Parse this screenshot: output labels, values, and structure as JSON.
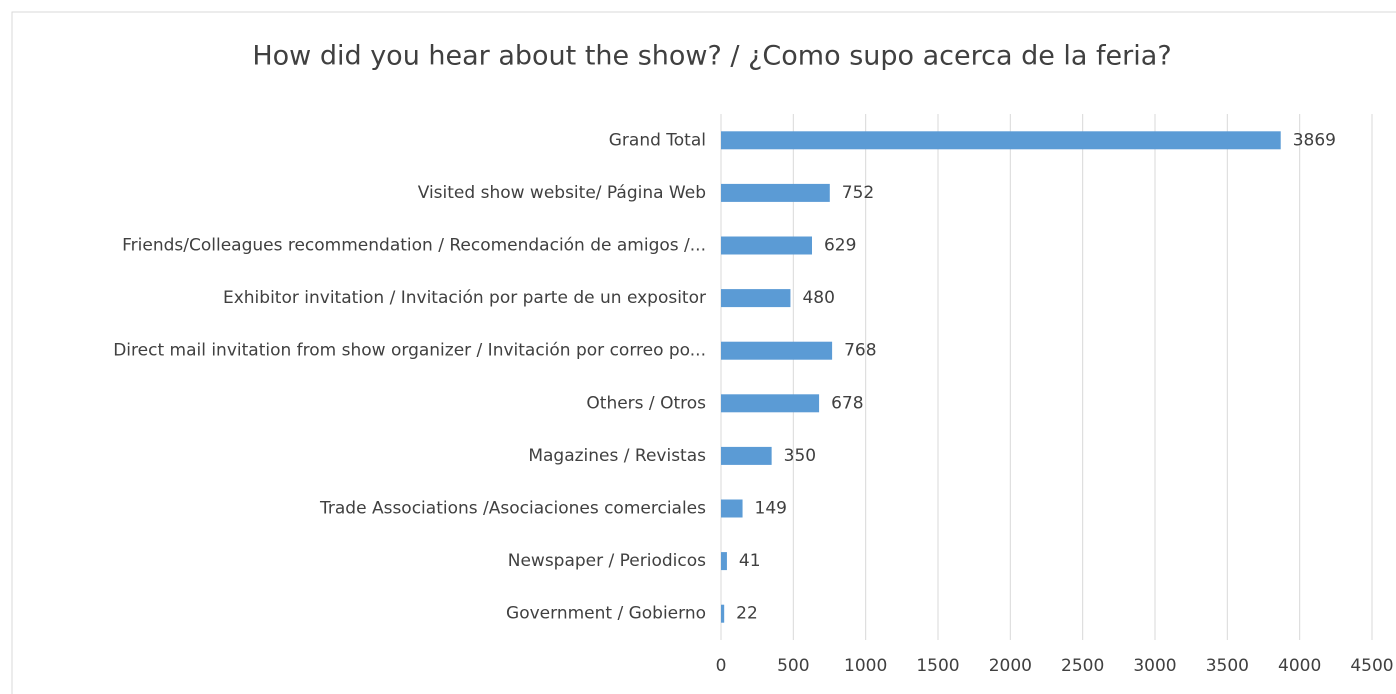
{
  "chart_data": {
    "type": "bar",
    "orientation": "horizontal",
    "title": "How did you hear about the show? / ¿Como supo acerca de la feria?",
    "categories": [
      "Grand Total",
      "Visited show website/ Página Web",
      "Friends/Colleagues recommendation / Recomendación de amigos /...",
      "Exhibitor invitation / Invitación por parte de un expositor",
      "Direct mail invitation from show organizer / Invitación por correo po...",
      "Others / Otros",
      "Magazines / Revistas",
      "Trade Associations /Asociaciones comerciales",
      "Newspaper / Periodicos",
      "Government / Gobierno"
    ],
    "values": [
      3869,
      752,
      629,
      480,
      768,
      678,
      350,
      149,
      41,
      22
    ],
    "color": "#5b9bd5",
    "xlim": [
      0,
      4500
    ],
    "xticks": [
      0,
      500,
      1000,
      1500,
      2000,
      2500,
      3000,
      3500,
      4000,
      4500
    ],
    "grid": true
  }
}
